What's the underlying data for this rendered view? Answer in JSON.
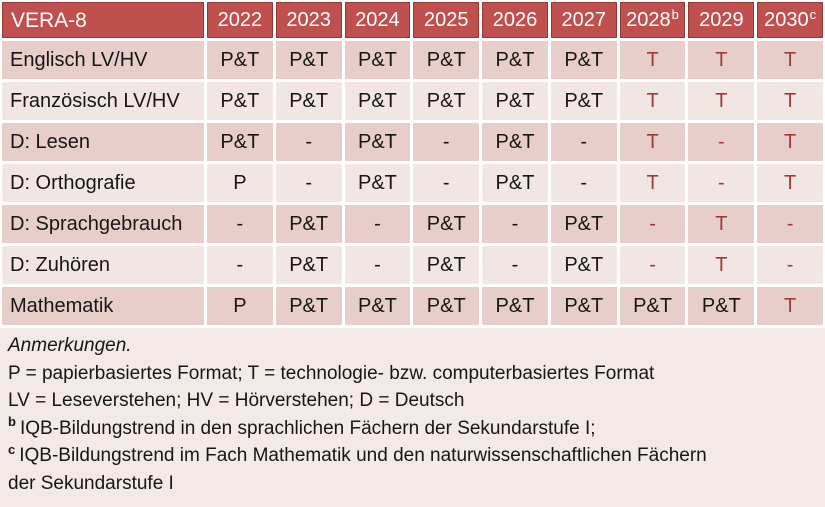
{
  "table": {
    "header": {
      "label": "VERA-8",
      "years": [
        {
          "text": "2022",
          "sup": ""
        },
        {
          "text": "2023",
          "sup": ""
        },
        {
          "text": "2024",
          "sup": ""
        },
        {
          "text": "2025",
          "sup": ""
        },
        {
          "text": "2026",
          "sup": ""
        },
        {
          "text": "2027",
          "sup": ""
        },
        {
          "text": "2028",
          "sup": "b"
        },
        {
          "text": "2029",
          "sup": ""
        },
        {
          "text": "2030",
          "sup": "c"
        }
      ]
    },
    "rows": [
      {
        "label": "Englisch LV/HV",
        "cells": [
          {
            "t": "P&T",
            "red": false
          },
          {
            "t": "P&T",
            "red": false
          },
          {
            "t": "P&T",
            "red": false
          },
          {
            "t": "P&T",
            "red": false
          },
          {
            "t": "P&T",
            "red": false
          },
          {
            "t": "P&T",
            "red": false
          },
          {
            "t": "T",
            "red": true
          },
          {
            "t": "T",
            "red": true
          },
          {
            "t": "T",
            "red": true
          }
        ]
      },
      {
        "label": "Französisch LV/HV",
        "cells": [
          {
            "t": "P&T",
            "red": false
          },
          {
            "t": "P&T",
            "red": false
          },
          {
            "t": "P&T",
            "red": false
          },
          {
            "t": "P&T",
            "red": false
          },
          {
            "t": "P&T",
            "red": false
          },
          {
            "t": "P&T",
            "red": false
          },
          {
            "t": "T",
            "red": true
          },
          {
            "t": "T",
            "red": true
          },
          {
            "t": "T",
            "red": true
          }
        ]
      },
      {
        "label": "D: Lesen",
        "cells": [
          {
            "t": "P&T",
            "red": false
          },
          {
            "t": "-",
            "red": false
          },
          {
            "t": "P&T",
            "red": false
          },
          {
            "t": "-",
            "red": false
          },
          {
            "t": "P&T",
            "red": false
          },
          {
            "t": "-",
            "red": false
          },
          {
            "t": "T",
            "red": true
          },
          {
            "t": "-",
            "red": true
          },
          {
            "t": "T",
            "red": true
          }
        ]
      },
      {
        "label": "D: Orthografie",
        "cells": [
          {
            "t": "P",
            "red": false
          },
          {
            "t": "-",
            "red": false
          },
          {
            "t": "P&T",
            "red": false
          },
          {
            "t": "-",
            "red": false
          },
          {
            "t": "P&T",
            "red": false
          },
          {
            "t": "-",
            "red": false
          },
          {
            "t": "T",
            "red": true
          },
          {
            "t": "-",
            "red": true
          },
          {
            "t": "T",
            "red": true
          }
        ]
      },
      {
        "label": "D: Sprachgebrauch",
        "cells": [
          {
            "t": "-",
            "red": false
          },
          {
            "t": "P&T",
            "red": false
          },
          {
            "t": "-",
            "red": false
          },
          {
            "t": "P&T",
            "red": false
          },
          {
            "t": "-",
            "red": false
          },
          {
            "t": "P&T",
            "red": false
          },
          {
            "t": "-",
            "red": true
          },
          {
            "t": "T",
            "red": true
          },
          {
            "t": "-",
            "red": true
          }
        ]
      },
      {
        "label": "D: Zuhören",
        "cells": [
          {
            "t": "-",
            "red": false
          },
          {
            "t": "P&T",
            "red": false
          },
          {
            "t": "-",
            "red": false
          },
          {
            "t": "P&T",
            "red": false
          },
          {
            "t": "-",
            "red": false
          },
          {
            "t": "P&T",
            "red": false
          },
          {
            "t": "-",
            "red": true
          },
          {
            "t": "T",
            "red": true
          },
          {
            "t": "-",
            "red": true
          }
        ]
      },
      {
        "label": "Mathematik",
        "cells": [
          {
            "t": "P",
            "red": false
          },
          {
            "t": "P&T",
            "red": false
          },
          {
            "t": "P&T",
            "red": false
          },
          {
            "t": "P&T",
            "red": false
          },
          {
            "t": "P&T",
            "red": false
          },
          {
            "t": "P&T",
            "red": false
          },
          {
            "t": "P&T",
            "red": false
          },
          {
            "t": "P&T",
            "red": false
          },
          {
            "t": "T",
            "red": true
          }
        ]
      }
    ]
  },
  "notes": [
    {
      "sup": "",
      "italic": true,
      "text": "Anmerkungen."
    },
    {
      "sup": "",
      "italic": false,
      "text": "P = papierbasiertes Format; T = technologie- bzw. computerbasiertes Format"
    },
    {
      "sup": "",
      "italic": false,
      "text": "LV = Leseverstehen; HV = Hörverstehen; D = Deutsch"
    },
    {
      "sup": "b",
      "italic": false,
      "text": "IQB-Bildungstrend in den sprachlichen Fächern der Sekundarstufe I;"
    },
    {
      "sup": "c",
      "italic": false,
      "text": "IQB-Bildungstrend im Fach Mathematik und den naturwissenschaftlichen Fächern der Sekundarstufe I"
    }
  ],
  "colors": {
    "header_bg": "#c0504d",
    "header_border": "#8e3a37",
    "header_text": "#ffffff",
    "band_dark": "#e8cecb",
    "band_light": "#f2e6e4",
    "notes_bg": "#f3e9e7",
    "text": "#161616",
    "accent_text": "#9e3a38"
  }
}
